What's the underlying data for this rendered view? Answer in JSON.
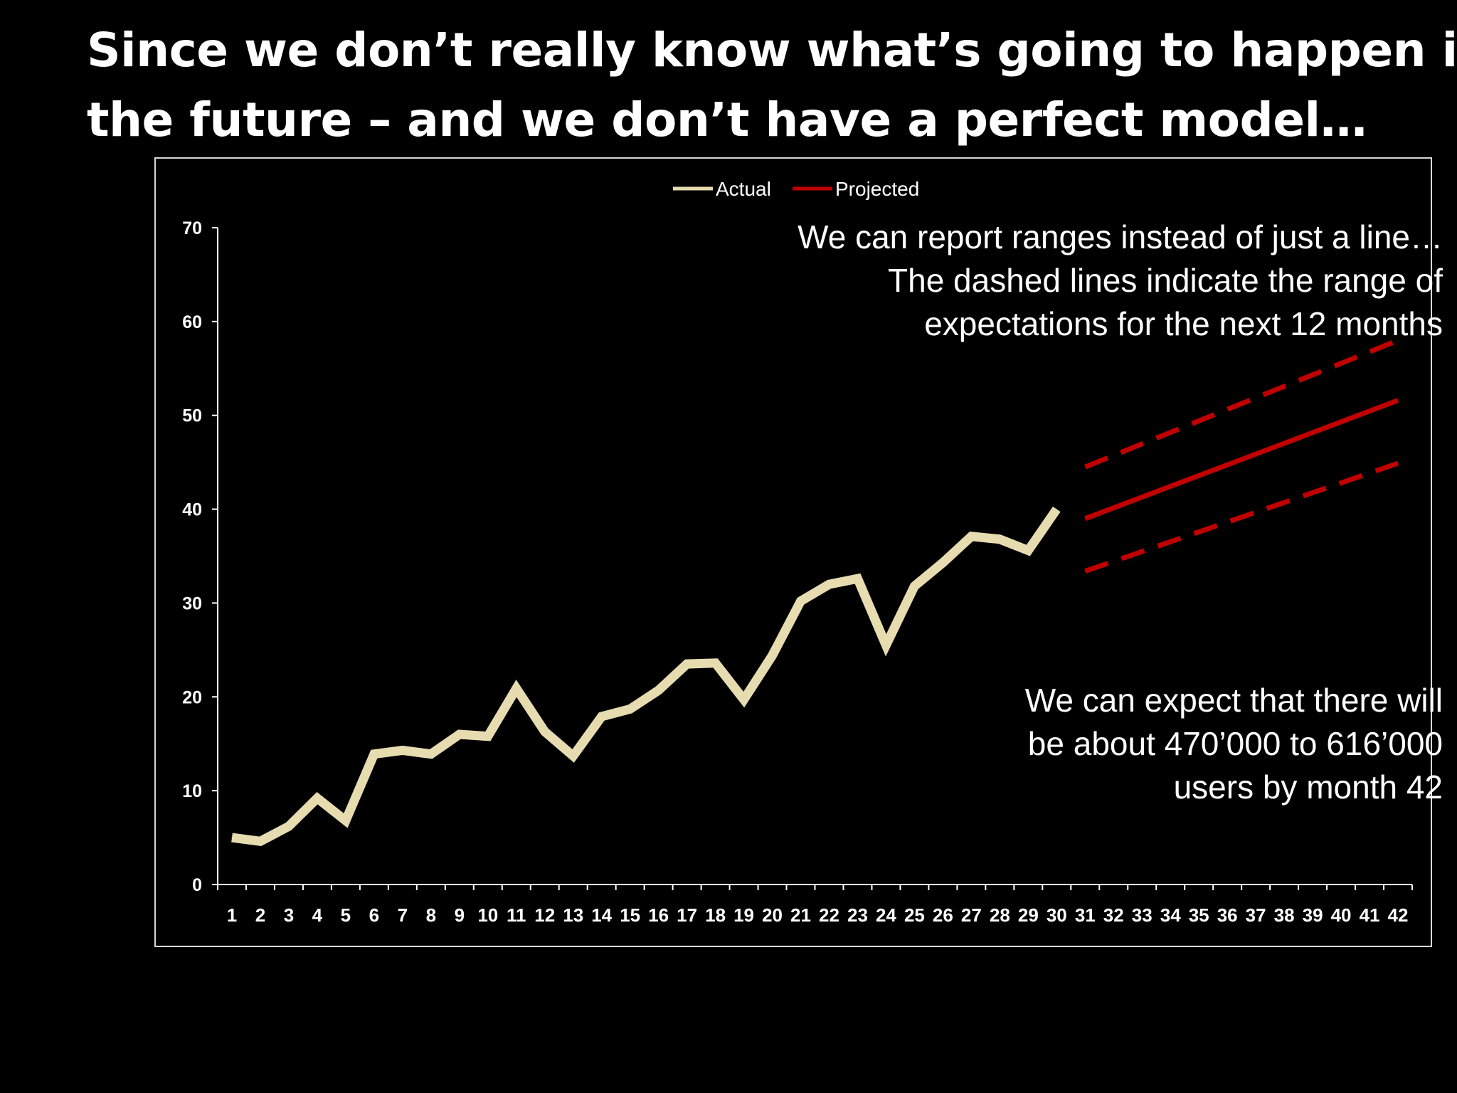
{
  "slide": {
    "title_lines": [
      "Since we don’t really know what’s going to happen in",
      "the future – and we don’t have a perfect model…"
    ],
    "note_top_lines": [
      "We can report ranges instead of just a line…",
      "The dashed lines indicate the range of",
      "expectations for the next 12 months"
    ],
    "note_bottom_lines": [
      "We can expect that there will",
      "be about 470’000 to 616’000",
      "users by month 42"
    ]
  },
  "chart_data": {
    "type": "line",
    "xlabel": "",
    "ylabel": "",
    "ylim": [
      0,
      70
    ],
    "yticks": [
      0,
      10,
      20,
      30,
      40,
      50,
      60,
      70
    ],
    "categories": [
      "1",
      "2",
      "3",
      "4",
      "5",
      "6",
      "7",
      "8",
      "9",
      "10",
      "11",
      "12",
      "13",
      "14",
      "15",
      "16",
      "17",
      "18",
      "19",
      "20",
      "21",
      "22",
      "23",
      "24",
      "25",
      "26",
      "27",
      "28",
      "29",
      "30",
      "31",
      "32",
      "33",
      "34",
      "35",
      "36",
      "37",
      "38",
      "39",
      "40",
      "41",
      "42"
    ],
    "legend": {
      "position": "top-center",
      "entries": [
        {
          "label": "Actual",
          "color": "#e6dcb0"
        },
        {
          "label": "Projected",
          "color": "#c00000"
        }
      ]
    },
    "series": [
      {
        "name": "Actual",
        "color": "#e6dcb0",
        "style": "solid",
        "x": [
          1,
          2,
          3,
          4,
          5,
          6,
          7,
          8,
          9,
          10,
          11,
          12,
          13,
          14,
          15,
          16,
          17,
          18,
          19,
          20,
          21,
          22,
          23,
          24,
          25,
          26,
          27,
          28,
          29,
          30
        ],
        "values": [
          5.0,
          4.6,
          6.2,
          9.2,
          6.8,
          13.9,
          14.3,
          13.9,
          16.0,
          15.8,
          20.9,
          16.3,
          13.7,
          17.9,
          18.7,
          20.7,
          23.5,
          23.6,
          19.7,
          24.4,
          30.2,
          32.0,
          32.6,
          25.5,
          31.8,
          34.3,
          37.1,
          36.8,
          35.6,
          40.0
        ]
      },
      {
        "name": "Projected",
        "color": "#c00000",
        "style": "solid",
        "x": [
          31,
          42
        ],
        "values": [
          39.0,
          51.6
        ]
      },
      {
        "name": "Projected upper range",
        "color": "#c00000",
        "style": "dashed",
        "x": [
          31,
          42
        ],
        "values": [
          44.5,
          58.0
        ]
      },
      {
        "name": "Projected lower range",
        "color": "#c00000",
        "style": "dashed",
        "x": [
          31,
          42
        ],
        "values": [
          33.4,
          44.9
        ]
      }
    ]
  }
}
